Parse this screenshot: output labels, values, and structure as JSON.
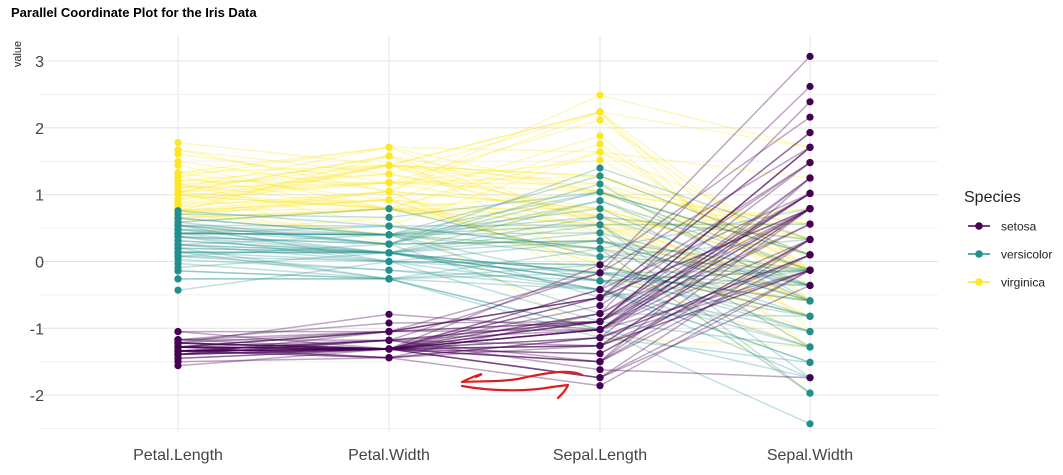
{
  "chart_data": {
    "type": "parallel-coordinates",
    "title": "Parallel Coordinate Plot for the Iris Data",
    "ylabel": "value",
    "xlabel": "",
    "axes": [
      "Petal.Length",
      "Petal.Width",
      "Sepal.Length",
      "Sepal.Width"
    ],
    "ylim": [
      -2.55,
      3.1
    ],
    "yticks": [
      -2,
      -1,
      0,
      1,
      2,
      3
    ],
    "grid": true,
    "legend": {
      "title": "Species",
      "position": "right"
    },
    "series": [
      {
        "name": "setosa",
        "color": "#440154",
        "lines": [
          [
            -1.34,
            -1.31,
            -0.9,
            1.02
          ],
          [
            -1.34,
            -1.31,
            -1.14,
            -0.13
          ],
          [
            -1.39,
            -1.31,
            -1.38,
            0.33
          ],
          [
            -1.28,
            -1.31,
            -1.5,
            0.1
          ],
          [
            -1.34,
            -1.31,
            -1.02,
            1.25
          ],
          [
            -1.17,
            -1.05,
            -0.54,
            1.93
          ],
          [
            -1.34,
            -1.18,
            -1.5,
            0.79
          ],
          [
            -1.28,
            -1.31,
            -1.02,
            0.79
          ],
          [
            -1.34,
            -1.31,
            -1.74,
            -0.36
          ],
          [
            -1.28,
            -1.44,
            -1.14,
            0.1
          ],
          [
            -1.28,
            -1.31,
            -0.54,
            1.48
          ],
          [
            -1.22,
            -1.31,
            -1.26,
            0.79
          ],
          [
            -1.34,
            -1.44,
            -1.26,
            -0.13
          ],
          [
            -1.5,
            -1.44,
            -1.86,
            -0.13
          ],
          [
            -1.45,
            -1.31,
            -0.05,
            2.16
          ],
          [
            -1.28,
            -1.05,
            -0.17,
            3.07
          ],
          [
            -1.39,
            -1.05,
            -0.54,
            1.93
          ],
          [
            -1.34,
            -1.18,
            -0.9,
            1.02
          ],
          [
            -1.17,
            -1.18,
            -0.17,
            1.71
          ],
          [
            -1.28,
            -1.18,
            -0.9,
            1.71
          ],
          [
            -1.17,
            -1.31,
            -0.54,
            0.79
          ],
          [
            -1.28,
            -1.05,
            -0.9,
            1.48
          ],
          [
            -1.56,
            -1.31,
            -1.5,
            1.25
          ],
          [
            -1.17,
            -0.92,
            -0.9,
            0.56
          ],
          [
            -1.05,
            -1.31,
            -1.26,
            0.79
          ],
          [
            -1.22,
            -1.31,
            -1.02,
            -0.13
          ],
          [
            -1.22,
            -1.05,
            -1.02,
            0.79
          ],
          [
            -1.28,
            -1.31,
            -0.78,
            1.02
          ],
          [
            -1.34,
            -1.31,
            -0.78,
            0.79
          ],
          [
            -1.22,
            -1.31,
            -1.38,
            0.33
          ],
          [
            -1.22,
            -1.31,
            -1.26,
            0.1
          ],
          [
            -1.28,
            -1.05,
            -0.54,
            0.79
          ],
          [
            -1.28,
            -1.44,
            -0.78,
            2.39
          ],
          [
            -1.34,
            -1.31,
            -0.42,
            2.62
          ],
          [
            -1.28,
            -1.31,
            -1.14,
            0.1
          ],
          [
            -1.45,
            -1.31,
            -1.02,
            0.33
          ],
          [
            -1.39,
            -1.31,
            -0.42,
            1.02
          ],
          [
            -1.34,
            -1.44,
            -1.14,
            1.25
          ],
          [
            -1.39,
            -1.31,
            -1.74,
            -0.13
          ],
          [
            -1.28,
            -1.31,
            -0.9,
            0.79
          ],
          [
            -1.39,
            -1.18,
            -1.02,
            1.02
          ],
          [
            -1.39,
            -1.18,
            -1.62,
            -1.74
          ],
          [
            -1.39,
            -1.31,
            -1.74,
            0.33
          ],
          [
            -1.22,
            -0.79,
            -1.02,
            1.02
          ],
          [
            -1.05,
            -1.05,
            -0.9,
            1.71
          ],
          [
            -1.34,
            -1.18,
            -1.26,
            -0.13
          ],
          [
            -1.22,
            -1.31,
            -0.9,
            1.71
          ],
          [
            -1.34,
            -1.31,
            -1.5,
            0.33
          ],
          [
            -1.28,
            -1.31,
            -0.66,
            1.48
          ],
          [
            -1.34,
            -1.31,
            -1.02,
            0.56
          ]
        ]
      },
      {
        "name": "versicolor",
        "color": "#21908C",
        "lines": [
          [
            0.54,
            0.26,
            1.4,
            0.33
          ],
          [
            0.42,
            0.4,
            0.67,
            0.33
          ],
          [
            0.65,
            0.4,
            1.28,
            0.1
          ],
          [
            0.14,
            0.13,
            -0.42,
            -1.74
          ],
          [
            0.48,
            0.4,
            0.79,
            -0.59
          ],
          [
            0.42,
            0.13,
            -0.17,
            -0.59
          ],
          [
            0.54,
            0.53,
            0.55,
            0.56
          ],
          [
            -0.26,
            -0.26,
            -1.14,
            -1.51
          ],
          [
            0.48,
            0.13,
            0.91,
            -0.36
          ],
          [
            0.08,
            0.26,
            -0.78,
            -0.82
          ],
          [
            -0.14,
            -0.26,
            -1.02,
            -2.43
          ],
          [
            0.25,
            0.4,
            0.07,
            -0.13
          ],
          [
            0.14,
            -0.26,
            0.19,
            -1.97
          ],
          [
            0.54,
            0.26,
            0.31,
            -0.36
          ],
          [
            -0.09,
            0.13,
            -0.29,
            -0.36
          ],
          [
            0.37,
            0.26,
            1.04,
            0.1
          ],
          [
            0.42,
            0.4,
            -0.29,
            -0.13
          ],
          [
            0.2,
            -0.26,
            -0.05,
            -0.82
          ],
          [
            0.42,
            0.4,
            0.43,
            -1.97
          ],
          [
            0.08,
            -0.13,
            -0.29,
            -1.28
          ],
          [
            0.59,
            0.79,
            0.07,
            0.33
          ],
          [
            0.14,
            0.13,
            0.31,
            -0.59
          ],
          [
            0.65,
            0.4,
            0.55,
            -1.28
          ],
          [
            0.54,
            0.0,
            0.31,
            -0.59
          ],
          [
            0.31,
            0.13,
            0.67,
            -0.36
          ],
          [
            0.37,
            0.26,
            0.91,
            -0.13
          ],
          [
            0.59,
            0.26,
            1.16,
            -0.59
          ],
          [
            0.71,
            0.66,
            1.04,
            -0.13
          ],
          [
            0.42,
            0.4,
            0.19,
            -0.36
          ],
          [
            -0.14,
            -0.26,
            -0.17,
            -1.05
          ],
          [
            0.03,
            -0.13,
            -0.42,
            -1.51
          ],
          [
            -0.03,
            -0.26,
            -0.42,
            -1.51
          ],
          [
            0.08,
            0.0,
            -0.05,
            -0.82
          ],
          [
            0.76,
            0.53,
            0.19,
            -0.82
          ],
          [
            0.42,
            0.4,
            -0.54,
            -0.13
          ],
          [
            0.42,
            0.53,
            0.19,
            0.79
          ],
          [
            0.54,
            0.4,
            1.04,
            0.1
          ],
          [
            0.37,
            0.13,
            0.55,
            -1.74
          ],
          [
            0.2,
            0.13,
            -0.29,
            -0.13
          ],
          [
            0.14,
            0.13,
            -0.42,
            -1.28
          ],
          [
            0.37,
            0.0,
            -0.42,
            -1.05
          ],
          [
            0.48,
            0.26,
            0.31,
            -0.13
          ],
          [
            0.14,
            0.0,
            -0.05,
            -1.05
          ],
          [
            -0.26,
            -0.26,
            -1.02,
            -1.74
          ],
          [
            0.25,
            0.13,
            -0.29,
            -0.82
          ],
          [
            0.25,
            0.0,
            -0.17,
            -0.13
          ],
          [
            0.25,
            0.13,
            -0.17,
            -0.36
          ],
          [
            0.31,
            0.13,
            0.43,
            -0.36
          ],
          [
            -0.43,
            0.0,
            -0.9,
            -1.28
          ],
          [
            0.2,
            0.13,
            -0.17,
            -0.59
          ]
        ]
      },
      {
        "name": "virginica",
        "color": "#FDE725",
        "lines": [
          [
            1.27,
            1.71,
            0.55,
            0.56
          ],
          [
            0.76,
            0.92,
            -0.05,
            -0.82
          ],
          [
            1.21,
            1.18,
            1.52,
            -0.13
          ],
          [
            1.04,
            0.79,
            0.55,
            -0.36
          ],
          [
            1.16,
            1.31,
            0.79,
            -0.13
          ],
          [
            1.61,
            1.18,
            2.12,
            -0.13
          ],
          [
            0.42,
            0.66,
            -1.14,
            -1.28
          ],
          [
            1.44,
            0.79,
            1.76,
            -0.36
          ],
          [
            1.16,
            0.79,
            1.04,
            -1.28
          ],
          [
            1.33,
            1.71,
            1.64,
            1.25
          ],
          [
            0.76,
            1.05,
            0.79,
            0.33
          ],
          [
            0.87,
            0.92,
            0.67,
            -0.82
          ],
          [
            0.99,
            1.18,
            1.16,
            -0.13
          ],
          [
            0.71,
            1.05,
            -0.17,
            -1.28
          ],
          [
            0.76,
            1.58,
            -0.05,
            -0.59
          ],
          [
            0.87,
            1.44,
            0.67,
            0.33
          ],
          [
            0.99,
            0.79,
            0.79,
            -0.13
          ],
          [
            1.67,
            1.31,
            2.24,
            1.71
          ],
          [
            1.78,
            1.44,
            2.24,
            -1.05
          ],
          [
            0.71,
            0.4,
            0.19,
            -1.97
          ],
          [
            1.1,
            1.44,
            1.28,
            0.33
          ],
          [
            0.65,
            1.05,
            -0.29,
            -0.59
          ],
          [
            1.67,
            1.05,
            2.24,
            -0.59
          ],
          [
            0.65,
            0.79,
            0.55,
            -0.82
          ],
          [
            1.1,
            1.18,
            1.04,
            0.56
          ],
          [
            1.27,
            0.79,
            1.64,
            0.33
          ],
          [
            0.59,
            0.79,
            0.43,
            -0.59
          ],
          [
            0.65,
            0.79,
            0.31,
            -0.13
          ],
          [
            1.04,
            1.18,
            0.67,
            -0.59
          ],
          [
            1.16,
            0.53,
            1.64,
            -0.13
          ],
          [
            1.33,
            0.92,
            1.88,
            -0.59
          ],
          [
            1.5,
            1.05,
            2.49,
            1.71
          ],
          [
            1.04,
            1.31,
            0.67,
            -0.59
          ],
          [
            0.76,
            0.4,
            0.55,
            -0.59
          ],
          [
            1.04,
            0.26,
            0.31,
            -1.05
          ],
          [
            1.33,
            1.44,
            2.24,
            -0.13
          ],
          [
            1.04,
            1.58,
            0.55,
            0.79
          ],
          [
            0.99,
            0.79,
            0.67,
            0.1
          ],
          [
            0.59,
            0.79,
            0.19,
            -0.13
          ],
          [
            0.93,
            1.18,
            1.28,
            0.1
          ],
          [
            1.04,
            1.58,
            1.04,
            0.1
          ],
          [
            0.76,
            1.44,
            1.28,
            0.1
          ],
          [
            0.76,
            0.92,
            -0.05,
            -0.82
          ],
          [
            1.21,
            1.44,
            1.16,
            0.33
          ],
          [
            1.1,
            1.71,
            1.04,
            0.56
          ],
          [
            0.82,
            1.44,
            1.04,
            -0.13
          ],
          [
            0.71,
            0.92,
            0.55,
            -1.28
          ],
          [
            0.82,
            1.05,
            0.79,
            -0.13
          ],
          [
            0.93,
            1.44,
            0.43,
            0.79
          ],
          [
            0.76,
            0.79,
            0.07,
            -0.13
          ]
        ]
      }
    ]
  }
}
